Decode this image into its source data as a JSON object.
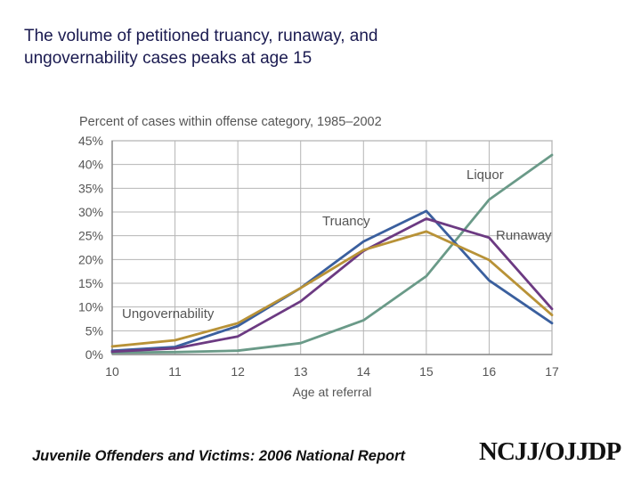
{
  "slide": {
    "title_line1": "The volume of petitioned truancy, runaway, and",
    "title_line2": "ungovernability cases peaks at age 15",
    "footer": "Juvenile Offenders and Victims: 2006 National Report",
    "logo": "NCJJ/OJJDP"
  },
  "chart_data": {
    "type": "line",
    "title": "Percent of cases within offense category, 1985–2002",
    "xlabel": "Age at referral",
    "ylabel": "",
    "x": [
      10,
      11,
      12,
      13,
      14,
      15,
      16,
      17
    ],
    "x_tick_labels": [
      "10",
      "11",
      "12",
      "13",
      "14",
      "15",
      "16",
      "17"
    ],
    "ylim": [
      0,
      45
    ],
    "y_ticks": [
      0,
      5,
      10,
      15,
      20,
      25,
      30,
      35,
      40,
      45
    ],
    "y_tick_labels": [
      "0%",
      "5%",
      "10%",
      "15%",
      "20%",
      "25%",
      "30%",
      "35%",
      "40%",
      "45%"
    ],
    "grid": true,
    "series": [
      {
        "name": "Liquor",
        "color": "#6a9a88",
        "values": [
          0.4,
          0.5,
          0.8,
          2.4,
          7.2,
          16.5,
          32.6,
          42.0
        ]
      },
      {
        "name": "Truancy",
        "color": "#3a5f9e",
        "values": [
          0.8,
          1.6,
          6.0,
          14.0,
          23.8,
          30.2,
          15.6,
          6.6
        ]
      },
      {
        "name": "Runaway",
        "color": "#6c3a82",
        "values": [
          0.6,
          1.3,
          3.8,
          11.2,
          21.8,
          28.6,
          24.6,
          9.6
        ]
      },
      {
        "name": "Ungovernability",
        "color": "#b89237",
        "values": [
          1.7,
          3.0,
          6.6,
          14.0,
          22.0,
          25.9,
          19.9,
          8.3
        ]
      }
    ],
    "series_labels": {
      "Liquor": "Liquor",
      "Truancy": "Truancy",
      "Runaway": "Runaway",
      "Ungovernability": "Ungovernability"
    }
  }
}
